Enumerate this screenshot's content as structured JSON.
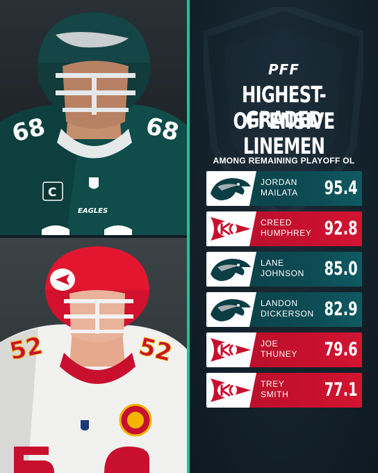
{
  "header": {
    "brand": "PFF",
    "title_line1": "HIGHEST-GRADED",
    "title_line2": "OFFENSIVE LINEMEN",
    "subtitle": "AMONG REMAINING PLAYOFF OL"
  },
  "photos": {
    "top": {
      "jersey_number": "68",
      "team_wordmark": "EAGLES",
      "captain_patch": "C"
    },
    "bottom": {
      "jersey_number": "52"
    }
  },
  "players": [
    {
      "team": "eagles",
      "first": "JORDAN",
      "last": "MAILATA",
      "grade": "95.4",
      "team_logo": "eagle-head-icon"
    },
    {
      "team": "chiefs",
      "first": "CREED",
      "last": "HUMPHREY",
      "grade": "92.8",
      "team_logo": "kc-arrowhead-icon"
    },
    {
      "team": "eagles",
      "first": "LANE",
      "last": "JOHNSON",
      "grade": "85.0",
      "team_logo": "eagle-head-icon"
    },
    {
      "team": "eagles",
      "first": "LANDON",
      "last": "DICKERSON",
      "grade": "82.9",
      "team_logo": "eagle-head-icon"
    },
    {
      "team": "chiefs",
      "first": "JOE",
      "last": "THUNEY",
      "grade": "79.6",
      "team_logo": "kc-arrowhead-icon"
    },
    {
      "team": "chiefs",
      "first": "TREY",
      "last": "SMITH",
      "grade": "77.1",
      "team_logo": "kc-arrowhead-icon"
    }
  ],
  "colors": {
    "eagles_green": "#0d4c54",
    "chiefs_red": "#c8102e",
    "accent": "#17c59a",
    "panel_bg": "#14222c"
  }
}
